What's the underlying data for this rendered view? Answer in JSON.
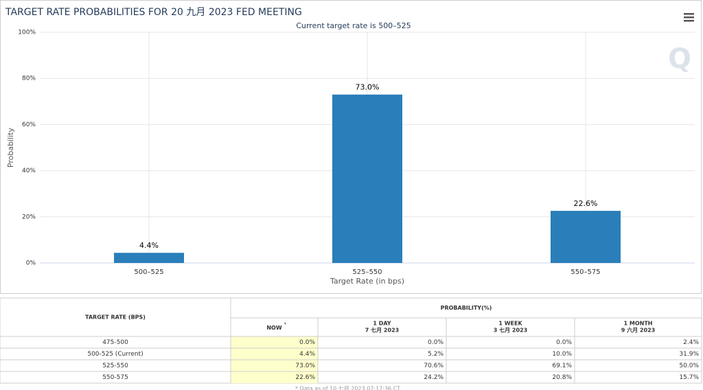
{
  "chart_data": {
    "type": "bar",
    "title": "TARGET RATE PROBABILITIES FOR 20 九月 2023 FED MEETING",
    "subtitle": "Current target rate is 500–525",
    "categories": [
      "500–525",
      "525–550",
      "550–575"
    ],
    "values": [
      4.4,
      73.0,
      22.6
    ],
    "value_labels": [
      "4.4%",
      "73.0%",
      "22.6%"
    ],
    "color": "#2a7fba",
    "xlabel": "Target Rate (in bps)",
    "ylabel": "Probability",
    "ylim": [
      0,
      100
    ],
    "yticks": [
      {
        "value": 0,
        "label": "0%"
      },
      {
        "value": 20,
        "label": "20%"
      },
      {
        "value": 40,
        "label": "40%"
      },
      {
        "value": 60,
        "label": "60%"
      },
      {
        "value": 80,
        "label": "80%"
      },
      {
        "value": 100,
        "label": "100%"
      }
    ],
    "grid": true
  },
  "table": {
    "rate_header": "TARGET RATE (BPS)",
    "group_header": "PROBABILITY(%)",
    "columns": [
      {
        "title": "NOW",
        "note": "*"
      },
      {
        "title": "1 DAY",
        "date": "7 七月 2023"
      },
      {
        "title": "1 WEEK",
        "date": "3 七月 2023"
      },
      {
        "title": "1 MONTH",
        "date": "9 六月 2023"
      }
    ],
    "rows": [
      [
        "475-500",
        "0.0%",
        "0.0%",
        "0.0%",
        "2.4%"
      ],
      [
        "500-525 (Current)",
        "4.4%",
        "5.2%",
        "10.0%",
        "31.9%"
      ],
      [
        "525-550",
        "73.0%",
        "70.6%",
        "69.1%",
        "50.0%"
      ],
      [
        "550-575",
        "22.6%",
        "24.2%",
        "20.8%",
        "15.7%"
      ]
    ],
    "footnote": "* Data as of 10 七月 2023 07:17:36 CT"
  }
}
